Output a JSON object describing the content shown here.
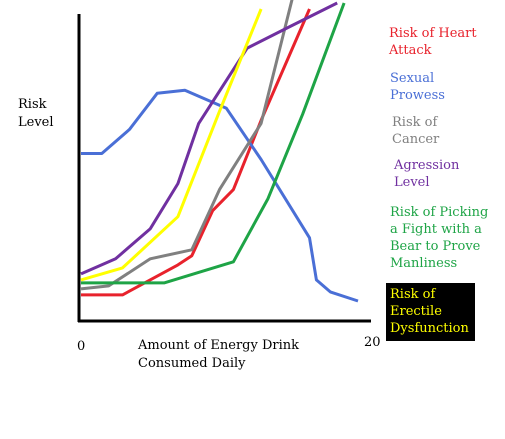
{
  "chart_data": {
    "type": "line",
    "ylabel": "Risk\nLevel",
    "xlabel": "Amount of Energy Drink\nConsumed Daily",
    "x_ticks": [
      "0",
      "20"
    ],
    "xlim": [
      0,
      20
    ],
    "ylim": [
      0,
      100
    ],
    "series": [
      {
        "name": "Risk of Heart\nAttack",
        "color": "#e8222c",
        "points": [
          [
            0,
            5
          ],
          [
            3,
            5
          ],
          [
            7,
            15
          ],
          [
            8,
            18
          ],
          [
            9.5,
            33
          ],
          [
            11,
            40
          ],
          [
            13,
            63
          ],
          [
            16.5,
            100
          ]
        ]
      },
      {
        "name": "Sexual\nProwess",
        "color": "#4a6fd6",
        "points": [
          [
            0,
            52
          ],
          [
            1.5,
            52
          ],
          [
            3.5,
            60
          ],
          [
            5.5,
            72
          ],
          [
            7.5,
            73
          ],
          [
            10.5,
            67
          ],
          [
            13,
            50
          ],
          [
            16.5,
            24
          ],
          [
            17,
            10
          ],
          [
            18,
            6
          ],
          [
            20,
            3
          ]
        ]
      },
      {
        "name": "Risk of\nCancer",
        "color": "#808080",
        "points": [
          [
            0,
            7
          ],
          [
            2,
            8
          ],
          [
            5,
            17
          ],
          [
            8,
            20
          ],
          [
            10,
            40
          ],
          [
            13,
            62
          ],
          [
            15.5,
            108
          ]
        ]
      },
      {
        "name": "Agression\nLevel",
        "color": "#7030a0",
        "points": [
          [
            0,
            12
          ],
          [
            2.5,
            17
          ],
          [
            5,
            27
          ],
          [
            7,
            42
          ],
          [
            8.5,
            62
          ],
          [
            12,
            87
          ],
          [
            15,
            94
          ],
          [
            18.5,
            102
          ]
        ]
      },
      {
        "name": "Risk of Picking\na Fight with a\nBear to Prove\nManliness",
        "color": "#1ea446",
        "points": [
          [
            0,
            9
          ],
          [
            6,
            9
          ],
          [
            11,
            16
          ],
          [
            13.5,
            37
          ],
          [
            16,
            65
          ],
          [
            19,
            102
          ]
        ]
      },
      {
        "name": "Risk of\nErectile\nDysfunction",
        "color": "#ffff00",
        "points": [
          [
            0,
            10
          ],
          [
            3,
            14
          ],
          [
            7,
            31
          ],
          [
            10,
            66
          ],
          [
            13,
            100
          ]
        ]
      }
    ]
  }
}
